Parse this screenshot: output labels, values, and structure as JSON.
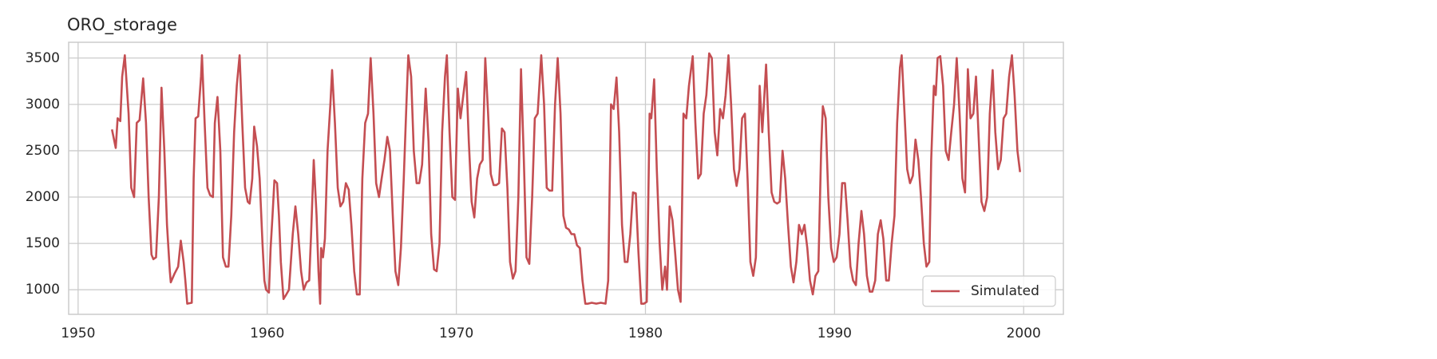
{
  "chart_data": {
    "type": "line",
    "title": "ORO_storage",
    "x": [
      1951.79,
      1951.99,
      1952.09,
      1952.23,
      1952.33,
      1952.47,
      1952.67,
      1952.81,
      1952.96,
      1953.1,
      1953.25,
      1953.44,
      1953.59,
      1953.73,
      1953.88,
      1953.98,
      1954.12,
      1954.27,
      1954.41,
      1954.56,
      1954.7,
      1954.85,
      1954.9,
      1955.09,
      1955.29,
      1955.43,
      1955.58,
      1955.67,
      1955.77,
      1956.01,
      1956.11,
      1956.21,
      1956.35,
      1956.5,
      1956.55,
      1956.69,
      1956.84,
      1956.98,
      1957.13,
      1957.23,
      1957.37,
      1957.52,
      1957.66,
      1957.81,
      1957.95,
      1958.1,
      1958.25,
      1958.39,
      1958.54,
      1958.68,
      1958.83,
      1958.97,
      1959.07,
      1959.21,
      1959.31,
      1959.46,
      1959.6,
      1959.75,
      1959.85,
      1959.94,
      1960.09,
      1960.18,
      1960.28,
      1960.38,
      1960.52,
      1960.62,
      1960.72,
      1960.86,
      1961.01,
      1961.15,
      1961.25,
      1961.35,
      1961.49,
      1961.64,
      1961.79,
      1961.93,
      1962.08,
      1962.22,
      1962.32,
      1962.46,
      1962.61,
      1962.71,
      1962.8,
      1962.85,
      1962.95,
      1963.05,
      1963.19,
      1963.34,
      1963.43,
      1963.58,
      1963.73,
      1963.87,
      1964.02,
      1964.16,
      1964.31,
      1964.45,
      1964.6,
      1964.74,
      1964.89,
      1965.03,
      1965.18,
      1965.33,
      1965.47,
      1965.62,
      1965.76,
      1965.91,
      1966.05,
      1966.2,
      1966.35,
      1966.49,
      1966.64,
      1966.78,
      1966.93,
      1967.07,
      1967.22,
      1967.36,
      1967.46,
      1967.61,
      1967.75,
      1967.9,
      1968.04,
      1968.19,
      1968.38,
      1968.53,
      1968.67,
      1968.82,
      1968.96,
      1969.11,
      1969.25,
      1969.4,
      1969.5,
      1969.64,
      1969.79,
      1969.93,
      1970.08,
      1970.22,
      1970.37,
      1970.52,
      1970.66,
      1970.81,
      1970.95,
      1971.1,
      1971.24,
      1971.39,
      1971.53,
      1971.68,
      1971.82,
      1971.97,
      1972.12,
      1972.26,
      1972.41,
      1972.55,
      1972.7,
      1972.84,
      1972.99,
      1973.13,
      1973.28,
      1973.42,
      1973.57,
      1973.71,
      1973.86,
      1974.01,
      1974.15,
      1974.3,
      1974.49,
      1974.64,
      1974.78,
      1974.93,
      1975.07,
      1975.22,
      1975.36,
      1975.51,
      1975.66,
      1975.8,
      1975.95,
      1976.09,
      1976.24,
      1976.38,
      1976.53,
      1976.67,
      1976.82,
      1976.96,
      1977.16,
      1977.4,
      1977.64,
      1977.89,
      1978.03,
      1978.18,
      1978.32,
      1978.47,
      1978.61,
      1978.76,
      1978.91,
      1979.05,
      1979.2,
      1979.34,
      1979.49,
      1979.63,
      1979.78,
      1979.92,
      1980.07,
      1980.22,
      1980.31,
      1980.46,
      1980.6,
      1980.75,
      1980.89,
      1981.04,
      1981.14,
      1981.28,
      1981.43,
      1981.57,
      1981.72,
      1981.86,
      1982.01,
      1982.16,
      1982.3,
      1982.5,
      1982.64,
      1982.79,
      1982.93,
      1983.08,
      1983.22,
      1983.37,
      1983.51,
      1983.66,
      1983.8,
      1983.95,
      1984.1,
      1984.24,
      1984.39,
      1984.53,
      1984.68,
      1984.82,
      1984.97,
      1985.11,
      1985.26,
      1985.4,
      1985.55,
      1985.7,
      1985.84,
      1986.04,
      1986.18,
      1986.38,
      1986.52,
      1986.67,
      1986.81,
      1986.96,
      1987.1,
      1987.25,
      1987.39,
      1987.54,
      1987.69,
      1987.83,
      1987.98,
      1988.12,
      1988.27,
      1988.41,
      1988.56,
      1988.7,
      1988.85,
      1988.99,
      1989.14,
      1989.29,
      1989.38,
      1989.53,
      1989.67,
      1989.82,
      1989.96,
      1990.11,
      1990.26,
      1990.4,
      1990.55,
      1990.69,
      1990.84,
      1990.98,
      1991.13,
      1991.27,
      1991.42,
      1991.56,
      1991.71,
      1991.86,
      1992.0,
      1992.15,
      1992.29,
      1992.44,
      1992.58,
      1992.73,
      1992.87,
      1993.02,
      1993.17,
      1993.31,
      1993.46,
      1993.55,
      1993.7,
      1993.84,
      1993.99,
      1994.14,
      1994.28,
      1994.43,
      1994.57,
      1994.72,
      1994.86,
      1995.01,
      1995.11,
      1995.25,
      1995.35,
      1995.45,
      1995.59,
      1995.74,
      1995.88,
      1996.03,
      1996.17,
      1996.32,
      1996.46,
      1996.61,
      1996.76,
      1996.9,
      1997.05,
      1997.19,
      1997.34,
      1997.48,
      1997.63,
      1997.77,
      1997.92,
      1998.07,
      1998.21,
      1998.36,
      1998.5,
      1998.65,
      1998.79,
      1998.94,
      1999.08,
      1999.23,
      1999.38,
      1999.52,
      1999.67,
      1999.81
    ],
    "series": [
      {
        "name": "Simulated",
        "color": "#c44e52",
        "values": [
          2730,
          2530,
          2850,
          2820,
          3300,
          3530,
          2900,
          2100,
          2000,
          2800,
          2830,
          3280,
          2800,
          2000,
          1380,
          1330,
          1350,
          2000,
          3180,
          2500,
          1700,
          1200,
          1080,
          1170,
          1250,
          1530,
          1300,
          1100,
          850,
          860,
          2200,
          2850,
          2870,
          3300,
          3530,
          2800,
          2100,
          2020,
          2000,
          2800,
          3080,
          2500,
          1350,
          1250,
          1250,
          1800,
          2700,
          3200,
          3530,
          2800,
          2100,
          1950,
          1930,
          2200,
          2760,
          2550,
          2200,
          1500,
          1100,
          1000,
          970,
          1450,
          1800,
          2180,
          2150,
          1800,
          1300,
          900,
          950,
          1000,
          1300,
          1600,
          1900,
          1600,
          1200,
          1000,
          1080,
          1100,
          1600,
          2400,
          1800,
          1200,
          850,
          1450,
          1350,
          1550,
          2500,
          3000,
          3370,
          2800,
          2100,
          1900,
          1950,
          2150,
          2080,
          1700,
          1200,
          950,
          950,
          2200,
          2800,
          2900,
          3500,
          2900,
          2150,
          2000,
          2200,
          2400,
          2650,
          2500,
          1800,
          1200,
          1050,
          1450,
          2200,
          3000,
          3530,
          3300,
          2500,
          2150,
          2150,
          2350,
          3170,
          2600,
          1600,
          1220,
          1200,
          1500,
          2700,
          3300,
          3530,
          2700,
          2000,
          1970,
          3170,
          2850,
          3100,
          3350,
          2600,
          1950,
          1780,
          2200,
          2350,
          2400,
          3500,
          2900,
          2250,
          2130,
          2130,
          2150,
          2740,
          2700,
          2100,
          1300,
          1120,
          1200,
          2000,
          3380,
          2400,
          1350,
          1280,
          2000,
          2850,
          2900,
          3530,
          3000,
          2100,
          2070,
          2070,
          3000,
          3500,
          2900,
          1800,
          1670,
          1650,
          1600,
          1600,
          1480,
          1450,
          1100,
          850,
          850,
          860,
          850,
          860,
          850,
          1100,
          3000,
          2950,
          3290,
          2700,
          1700,
          1300,
          1300,
          1600,
          2050,
          2040,
          1400,
          850,
          850,
          870,
          2900,
          2850,
          3270,
          2300,
          1500,
          1000,
          1250,
          1000,
          1900,
          1750,
          1400,
          1000,
          870,
          2900,
          2850,
          3200,
          3520,
          2800,
          2200,
          2250,
          2900,
          3100,
          3550,
          3500,
          2700,
          2450,
          2950,
          2850,
          3100,
          3530,
          3000,
          2300,
          2120,
          2300,
          2850,
          2900,
          2200,
          1300,
          1150,
          1350,
          3200,
          2700,
          3430,
          2700,
          2050,
          1950,
          1930,
          1950,
          2500,
          2200,
          1700,
          1250,
          1080,
          1300,
          1700,
          1600,
          1700,
          1450,
          1100,
          950,
          1150,
          1200,
          2500,
          2980,
          2850,
          2000,
          1450,
          1300,
          1350,
          1600,
          2150,
          2150,
          1750,
          1250,
          1100,
          1050,
          1500,
          1850,
          1600,
          1150,
          980,
          980,
          1100,
          1600,
          1750,
          1550,
          1100,
          1100,
          1500,
          1800,
          2800,
          3400,
          3530,
          2900,
          2300,
          2150,
          2230,
          2620,
          2400,
          2000,
          1500,
          1250,
          1300,
          2400,
          3200,
          3100,
          3500,
          3520,
          3200,
          2500,
          2400,
          2700,
          3000,
          3500,
          2900,
          2200,
          2050,
          3380,
          2850,
          2900,
          3300,
          2600,
          1950,
          1850,
          2000,
          2900,
          3370,
          2700,
          2300,
          2400,
          2850,
          2900,
          3300,
          3530,
          3100,
          2500,
          2270
        ]
      }
    ],
    "xlim": [
      1949.5,
      2002.1
    ],
    "ylim": [
      735,
      3670
    ],
    "xticks": [
      1950,
      1960,
      1970,
      1980,
      1990,
      2000
    ],
    "yticks": [
      1000,
      1500,
      2000,
      2500,
      3000,
      3500
    ],
    "grid": true,
    "legend": "lower right"
  }
}
